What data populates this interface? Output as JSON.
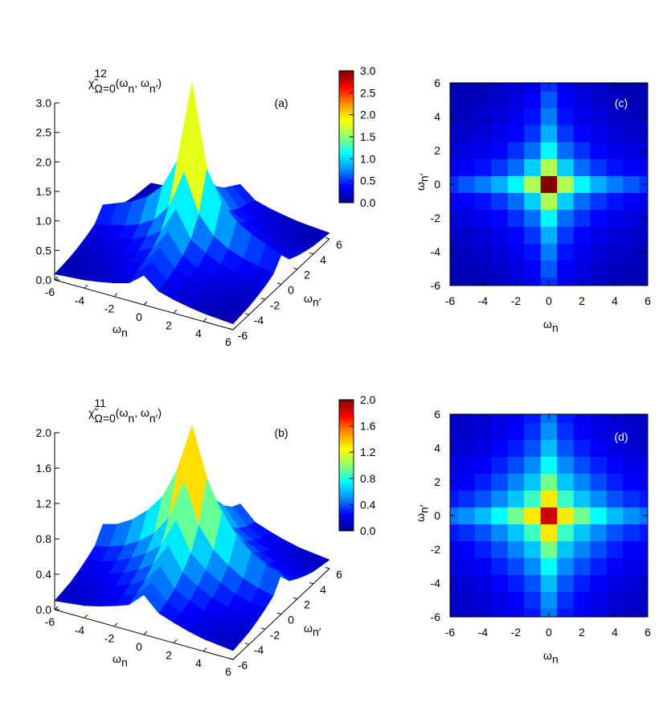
{
  "chart_data": [
    {
      "type": "surface",
      "title": [
        {
          "text": "χ̃"
        },
        {
          "text": "12",
          "script": "sup"
        },
        {
          "text": "Ω=0",
          "script": "sub"
        },
        {
          "text": "(ω"
        },
        {
          "text": "n",
          "script": "sub"
        },
        {
          "text": ", ω"
        },
        {
          "text": "n′",
          "script": "sub"
        },
        {
          "text": ")"
        }
      ],
      "label": "(a)",
      "xlabel": [
        {
          "text": "ω"
        },
        {
          "text": "n",
          "script": "sub"
        }
      ],
      "ylabel": [
        {
          "text": "ω"
        },
        {
          "text": "n′",
          "script": "sub"
        }
      ],
      "x": [
        -6,
        -5,
        -4,
        -3,
        -2,
        -1,
        0,
        1,
        2,
        3,
        4,
        5,
        6
      ],
      "y": [
        -6,
        -5,
        -4,
        -3,
        -2,
        -1,
        0,
        1,
        2,
        3,
        4,
        5,
        6
      ],
      "xlim": [
        -6,
        6
      ],
      "ylim": [
        -6,
        6
      ],
      "xticks": [
        -6,
        -4,
        -2,
        0,
        2,
        4,
        6
      ],
      "yticks": [
        -6,
        -4,
        -2,
        0,
        2,
        4,
        6
      ],
      "zlim": [
        0,
        3
      ],
      "zticks": [
        {
          "value": 0,
          "label": "0.0"
        },
        0.5,
        {
          "value": 1,
          "label": "1.0"
        },
        1.5,
        {
          "value": 2,
          "label": "2.0"
        },
        2.5,
        {
          "value": 3,
          "label": "3.0"
        }
      ],
      "colorbar": true,
      "colormap": [
        "#000090",
        "#0000ff",
        "#0090ff",
        "#00ffff",
        "#90ff70",
        "#ffff00",
        "#ff9000",
        "#ff0000",
        "#800000"
      ],
      "z": [
        [
          0.1,
          0.12,
          0.14,
          0.18,
          0.23,
          0.3,
          0.5,
          0.3,
          0.23,
          0.18,
          0.14,
          0.12,
          0.1
        ],
        [
          0.12,
          0.14,
          0.17,
          0.21,
          0.27,
          0.36,
          0.6,
          0.36,
          0.27,
          0.21,
          0.17,
          0.14,
          0.12
        ],
        [
          0.14,
          0.17,
          0.2,
          0.25,
          0.32,
          0.42,
          0.7,
          0.42,
          0.32,
          0.25,
          0.2,
          0.17,
          0.14
        ],
        [
          0.18,
          0.21,
          0.25,
          0.3,
          0.38,
          0.51,
          0.85,
          0.51,
          0.38,
          0.3,
          0.25,
          0.21,
          0.18
        ],
        [
          0.23,
          0.27,
          0.32,
          0.38,
          0.5,
          0.66,
          1.1,
          0.66,
          0.5,
          0.38,
          0.32,
          0.27,
          0.23
        ],
        [
          0.3,
          0.36,
          0.42,
          0.51,
          0.66,
          0.96,
          1.6,
          0.96,
          0.66,
          0.51,
          0.42,
          0.36,
          0.3
        ],
        [
          0.5,
          0.6,
          0.7,
          0.85,
          1.1,
          1.6,
          3.0,
          1.6,
          1.1,
          0.85,
          0.7,
          0.6,
          0.5
        ],
        [
          0.3,
          0.36,
          0.42,
          0.51,
          0.66,
          0.96,
          1.6,
          0.96,
          0.66,
          0.51,
          0.42,
          0.36,
          0.3
        ],
        [
          0.23,
          0.27,
          0.32,
          0.38,
          0.5,
          0.66,
          1.1,
          0.66,
          0.5,
          0.38,
          0.32,
          0.27,
          0.23
        ],
        [
          0.18,
          0.21,
          0.25,
          0.3,
          0.38,
          0.51,
          0.85,
          0.51,
          0.38,
          0.3,
          0.25,
          0.21,
          0.18
        ],
        [
          0.14,
          0.17,
          0.2,
          0.25,
          0.32,
          0.42,
          0.7,
          0.42,
          0.32,
          0.25,
          0.2,
          0.17,
          0.14
        ],
        [
          0.12,
          0.14,
          0.17,
          0.21,
          0.27,
          0.36,
          0.6,
          0.36,
          0.27,
          0.21,
          0.17,
          0.14,
          0.12
        ],
        [
          0.1,
          0.12,
          0.14,
          0.18,
          0.23,
          0.3,
          0.5,
          0.3,
          0.23,
          0.18,
          0.14,
          0.12,
          0.1
        ]
      ]
    },
    {
      "type": "heatmap",
      "label": "(c)",
      "xlabel": [
        {
          "text": "ω"
        },
        {
          "text": "n",
          "script": "sub"
        }
      ],
      "ylabel": [
        {
          "text": "ω"
        },
        {
          "text": "n′",
          "script": "sub"
        }
      ],
      "x": [
        -6,
        -5,
        -4,
        -3,
        -2,
        -1,
        0,
        1,
        2,
        3,
        4,
        5,
        6
      ],
      "y": [
        -6,
        -5,
        -4,
        -3,
        -2,
        -1,
        0,
        1,
        2,
        3,
        4,
        5,
        6
      ],
      "xlim": [
        -6,
        6
      ],
      "ylim": [
        -6,
        6
      ],
      "xticks": [
        -6,
        -4,
        -2,
        0,
        2,
        4,
        6
      ],
      "yticks": [
        -6,
        -4,
        -2,
        0,
        2,
        4,
        6
      ],
      "zlim": [
        0,
        3
      ],
      "colormap": [
        "#000090",
        "#0000ff",
        "#0090ff",
        "#00ffff",
        "#90ff70",
        "#ffff00",
        "#ff9000",
        "#ff0000",
        "#800000"
      ],
      "z": [
        [
          0.1,
          0.12,
          0.14,
          0.18,
          0.23,
          0.3,
          0.5,
          0.3,
          0.23,
          0.18,
          0.14,
          0.12,
          0.1
        ],
        [
          0.12,
          0.14,
          0.17,
          0.21,
          0.27,
          0.36,
          0.6,
          0.36,
          0.27,
          0.21,
          0.17,
          0.14,
          0.12
        ],
        [
          0.14,
          0.17,
          0.2,
          0.25,
          0.32,
          0.42,
          0.7,
          0.42,
          0.32,
          0.25,
          0.2,
          0.17,
          0.14
        ],
        [
          0.18,
          0.21,
          0.25,
          0.3,
          0.38,
          0.51,
          0.85,
          0.51,
          0.38,
          0.3,
          0.25,
          0.21,
          0.18
        ],
        [
          0.23,
          0.27,
          0.32,
          0.38,
          0.5,
          0.66,
          1.1,
          0.66,
          0.5,
          0.38,
          0.32,
          0.27,
          0.23
        ],
        [
          0.3,
          0.36,
          0.42,
          0.51,
          0.66,
          0.96,
          1.6,
          0.96,
          0.66,
          0.51,
          0.42,
          0.36,
          0.3
        ],
        [
          0.5,
          0.6,
          0.7,
          0.85,
          1.1,
          1.6,
          3.0,
          1.6,
          1.1,
          0.85,
          0.7,
          0.6,
          0.5
        ],
        [
          0.3,
          0.36,
          0.42,
          0.51,
          0.66,
          0.96,
          1.6,
          0.96,
          0.66,
          0.51,
          0.42,
          0.36,
          0.3
        ],
        [
          0.23,
          0.27,
          0.32,
          0.38,
          0.5,
          0.66,
          1.1,
          0.66,
          0.5,
          0.38,
          0.32,
          0.27,
          0.23
        ],
        [
          0.18,
          0.21,
          0.25,
          0.3,
          0.38,
          0.51,
          0.85,
          0.51,
          0.38,
          0.3,
          0.25,
          0.21,
          0.18
        ],
        [
          0.14,
          0.17,
          0.2,
          0.25,
          0.32,
          0.42,
          0.7,
          0.42,
          0.32,
          0.25,
          0.2,
          0.17,
          0.14
        ],
        [
          0.12,
          0.14,
          0.17,
          0.21,
          0.27,
          0.36,
          0.6,
          0.36,
          0.27,
          0.21,
          0.17,
          0.14,
          0.12
        ],
        [
          0.1,
          0.12,
          0.14,
          0.18,
          0.23,
          0.3,
          0.5,
          0.3,
          0.23,
          0.18,
          0.14,
          0.12,
          0.1
        ]
      ]
    },
    {
      "type": "surface",
      "title": [
        {
          "text": "χ̃"
        },
        {
          "text": "11",
          "script": "sup"
        },
        {
          "text": "Ω=0",
          "script": "sub"
        },
        {
          "text": "(ω"
        },
        {
          "text": "n",
          "script": "sub"
        },
        {
          "text": ", ω"
        },
        {
          "text": "n′",
          "script": "sub"
        },
        {
          "text": ")"
        }
      ],
      "label": "(b)",
      "xlabel": [
        {
          "text": "ω"
        },
        {
          "text": "n",
          "script": "sub"
        }
      ],
      "ylabel": [
        {
          "text": "ω"
        },
        {
          "text": "n′",
          "script": "sub"
        }
      ],
      "x": [
        -6,
        -5,
        -4,
        -3,
        -2,
        -1,
        0,
        1,
        2,
        3,
        4,
        5,
        6
      ],
      "y": [
        -6,
        -5,
        -4,
        -3,
        -2,
        -1,
        0,
        1,
        2,
        3,
        4,
        5,
        6
      ],
      "xlim": [
        -6,
        6
      ],
      "ylim": [
        -6,
        6
      ],
      "xticks": [
        -6,
        -4,
        -2,
        0,
        2,
        4,
        6
      ],
      "yticks": [
        -6,
        -4,
        -2,
        0,
        2,
        4,
        6
      ],
      "zlim": [
        0,
        2
      ],
      "zticks": [
        {
          "value": 0,
          "label": "0.0"
        },
        0.4,
        0.8,
        1.2,
        1.6,
        {
          "value": 2,
          "label": "2.0"
        }
      ],
      "colorbar": true,
      "colormap": [
        "#000090",
        "#0000ff",
        "#0090ff",
        "#00ffff",
        "#90ff70",
        "#ffff00",
        "#ff9000",
        "#ff0000",
        "#800000"
      ],
      "z": [
        [
          0.1,
          0.12,
          0.14,
          0.18,
          0.23,
          0.29,
          0.45,
          0.29,
          0.23,
          0.18,
          0.14,
          0.12,
          0.1
        ],
        [
          0.12,
          0.14,
          0.16,
          0.2,
          0.25,
          0.33,
          0.5,
          0.33,
          0.25,
          0.2,
          0.16,
          0.14,
          0.12
        ],
        [
          0.14,
          0.16,
          0.19,
          0.24,
          0.3,
          0.39,
          0.6,
          0.39,
          0.3,
          0.24,
          0.19,
          0.16,
          0.14
        ],
        [
          0.18,
          0.2,
          0.24,
          0.3,
          0.38,
          0.49,
          0.75,
          0.49,
          0.38,
          0.3,
          0.24,
          0.2,
          0.18
        ],
        [
          0.23,
          0.25,
          0.3,
          0.38,
          0.48,
          0.62,
          0.95,
          0.62,
          0.48,
          0.38,
          0.3,
          0.25,
          0.23
        ],
        [
          0.29,
          0.33,
          0.39,
          0.49,
          0.62,
          0.85,
          1.3,
          0.85,
          0.62,
          0.49,
          0.39,
          0.33,
          0.29
        ],
        [
          0.45,
          0.5,
          0.6,
          0.75,
          0.95,
          1.3,
          1.85,
          1.3,
          0.95,
          0.75,
          0.6,
          0.5,
          0.45
        ],
        [
          0.29,
          0.33,
          0.39,
          0.49,
          0.62,
          0.85,
          1.3,
          0.85,
          0.62,
          0.49,
          0.39,
          0.33,
          0.29
        ],
        [
          0.23,
          0.25,
          0.3,
          0.38,
          0.48,
          0.62,
          0.95,
          0.62,
          0.48,
          0.38,
          0.3,
          0.25,
          0.23
        ],
        [
          0.18,
          0.2,
          0.24,
          0.3,
          0.38,
          0.49,
          0.75,
          0.49,
          0.38,
          0.3,
          0.24,
          0.2,
          0.18
        ],
        [
          0.14,
          0.16,
          0.19,
          0.24,
          0.3,
          0.39,
          0.6,
          0.39,
          0.3,
          0.24,
          0.19,
          0.16,
          0.14
        ],
        [
          0.12,
          0.14,
          0.16,
          0.2,
          0.25,
          0.33,
          0.5,
          0.33,
          0.25,
          0.2,
          0.16,
          0.14,
          0.12
        ],
        [
          0.1,
          0.12,
          0.14,
          0.18,
          0.23,
          0.29,
          0.45,
          0.29,
          0.23,
          0.18,
          0.14,
          0.12,
          0.1
        ]
      ]
    },
    {
      "type": "heatmap",
      "label": "(d)",
      "xlabel": [
        {
          "text": "ω"
        },
        {
          "text": "n",
          "script": "sub"
        }
      ],
      "ylabel": [
        {
          "text": "ω"
        },
        {
          "text": "n′",
          "script": "sub"
        }
      ],
      "x": [
        -6,
        -5,
        -4,
        -3,
        -2,
        -1,
        0,
        1,
        2,
        3,
        4,
        5,
        6
      ],
      "y": [
        -6,
        -5,
        -4,
        -3,
        -2,
        -1,
        0,
        1,
        2,
        3,
        4,
        5,
        6
      ],
      "xlim": [
        -6,
        6
      ],
      "ylim": [
        -6,
        6
      ],
      "xticks": [
        -6,
        -4,
        -2,
        0,
        2,
        4,
        6
      ],
      "yticks": [
        -6,
        -4,
        -2,
        0,
        2,
        4,
        6
      ],
      "zlim": [
        0,
        2
      ],
      "colormap": [
        "#000090",
        "#0000ff",
        "#0090ff",
        "#00ffff",
        "#90ff70",
        "#ffff00",
        "#ff9000",
        "#ff0000",
        "#800000"
      ],
      "z": [
        [
          0.1,
          0.12,
          0.14,
          0.18,
          0.23,
          0.29,
          0.45,
          0.29,
          0.23,
          0.18,
          0.14,
          0.12,
          0.1
        ],
        [
          0.12,
          0.14,
          0.16,
          0.2,
          0.25,
          0.33,
          0.5,
          0.33,
          0.25,
          0.2,
          0.16,
          0.14,
          0.12
        ],
        [
          0.14,
          0.16,
          0.19,
          0.24,
          0.3,
          0.39,
          0.6,
          0.39,
          0.3,
          0.24,
          0.19,
          0.16,
          0.14
        ],
        [
          0.18,
          0.2,
          0.24,
          0.3,
          0.38,
          0.49,
          0.75,
          0.49,
          0.38,
          0.3,
          0.24,
          0.2,
          0.18
        ],
        [
          0.23,
          0.25,
          0.3,
          0.38,
          0.48,
          0.62,
          0.95,
          0.62,
          0.48,
          0.38,
          0.3,
          0.25,
          0.23
        ],
        [
          0.29,
          0.33,
          0.39,
          0.49,
          0.62,
          0.85,
          1.3,
          0.85,
          0.62,
          0.49,
          0.39,
          0.33,
          0.29
        ],
        [
          0.45,
          0.5,
          0.6,
          0.75,
          0.95,
          1.3,
          1.85,
          1.3,
          0.95,
          0.75,
          0.6,
          0.5,
          0.45
        ],
        [
          0.29,
          0.33,
          0.39,
          0.49,
          0.62,
          0.85,
          1.3,
          0.85,
          0.62,
          0.49,
          0.39,
          0.33,
          0.29
        ],
        [
          0.23,
          0.25,
          0.3,
          0.38,
          0.48,
          0.62,
          0.95,
          0.62,
          0.48,
          0.38,
          0.3,
          0.25,
          0.23
        ],
        [
          0.18,
          0.2,
          0.24,
          0.3,
          0.38,
          0.49,
          0.75,
          0.49,
          0.38,
          0.3,
          0.24,
          0.2,
          0.18
        ],
        [
          0.14,
          0.16,
          0.19,
          0.24,
          0.3,
          0.39,
          0.6,
          0.39,
          0.3,
          0.24,
          0.19,
          0.16,
          0.14
        ],
        [
          0.12,
          0.14,
          0.16,
          0.2,
          0.25,
          0.33,
          0.5,
          0.33,
          0.25,
          0.2,
          0.16,
          0.14,
          0.12
        ],
        [
          0.1,
          0.12,
          0.14,
          0.18,
          0.23,
          0.29,
          0.45,
          0.29,
          0.23,
          0.18,
          0.14,
          0.12,
          0.1
        ]
      ]
    }
  ]
}
